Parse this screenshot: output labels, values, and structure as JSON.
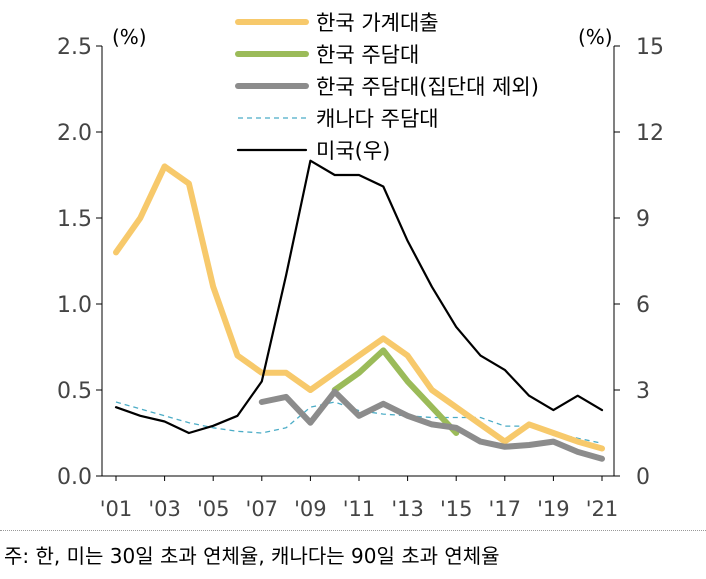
{
  "chart_data": {
    "type": "line",
    "x": [
      "'01",
      "'02",
      "'03",
      "'04",
      "'05",
      "'06",
      "'07",
      "'08",
      "'09",
      "'10",
      "'11",
      "'12",
      "'13",
      "'14",
      "'15",
      "'16",
      "'17",
      "'18",
      "'19",
      "'20",
      "'21"
    ],
    "x_tick_labels": [
      "'01",
      "'03",
      "'05",
      "'07",
      "'09",
      "'11",
      "'13",
      "'15",
      "'17",
      "'19",
      "'21"
    ],
    "y_left": {
      "unit_label": "(%)",
      "ylim": [
        0,
        2.5
      ],
      "ticks": [
        "0.0",
        "0.5",
        "1.0",
        "1.5",
        "2.0",
        "2.5"
      ]
    },
    "y_right": {
      "unit_label": "(%)",
      "ylim": [
        0,
        15
      ],
      "ticks": [
        "0",
        "3",
        "6",
        "9",
        "12",
        "15"
      ]
    },
    "grid": false,
    "legend_position": "top-center",
    "series": [
      {
        "name": "한국 가계대출",
        "axis": "left",
        "color": "#F7C96B",
        "style": "solid",
        "width": "thick",
        "values": [
          1.3,
          1.5,
          1.8,
          1.7,
          1.1,
          0.7,
          0.6,
          0.6,
          0.5,
          0.6,
          0.7,
          0.8,
          0.7,
          0.5,
          0.4,
          0.3,
          0.2,
          0.3,
          0.25,
          0.2,
          0.16
        ]
      },
      {
        "name": "한국 주담대",
        "axis": "left",
        "color": "#9BBB59",
        "style": "solid",
        "width": "thick",
        "values": [
          null,
          null,
          null,
          null,
          null,
          null,
          null,
          null,
          null,
          0.5,
          0.6,
          0.73,
          0.55,
          0.4,
          0.25,
          null,
          null,
          null,
          null,
          null,
          null
        ]
      },
      {
        "name": "한국 주담대(집단대 제외)",
        "axis": "left",
        "color": "#8C8C8C",
        "style": "solid",
        "width": "thick",
        "values": [
          null,
          null,
          null,
          null,
          null,
          null,
          0.43,
          0.46,
          0.31,
          0.49,
          0.35,
          0.42,
          0.35,
          0.3,
          0.28,
          0.2,
          0.17,
          0.18,
          0.2,
          0.14,
          0.1
        ]
      },
      {
        "name": "캐나다 주담대",
        "axis": "left",
        "color": "#4BACC6",
        "style": "dashed",
        "width": "thin",
        "values": [
          0.43,
          0.39,
          0.35,
          0.31,
          0.28,
          0.26,
          0.25,
          0.28,
          0.4,
          0.43,
          0.38,
          0.36,
          0.35,
          0.34,
          0.34,
          0.34,
          0.29,
          0.29,
          0.25,
          0.22,
          0.19
        ]
      },
      {
        "name": "미국(우)",
        "axis": "right",
        "color": "#000000",
        "style": "solid",
        "width": "medium",
        "values": [
          2.4,
          2.1,
          1.9,
          1.5,
          1.75,
          2.1,
          3.3,
          7.0,
          11.0,
          10.5,
          10.5,
          10.1,
          8.2,
          6.6,
          5.2,
          4.2,
          3.7,
          2.8,
          2.3,
          2.8,
          2.3
        ]
      }
    ]
  },
  "footnote": "주: 한, 미는 30일 초과 연체율, 캐나다는 90일 초과 연체율"
}
